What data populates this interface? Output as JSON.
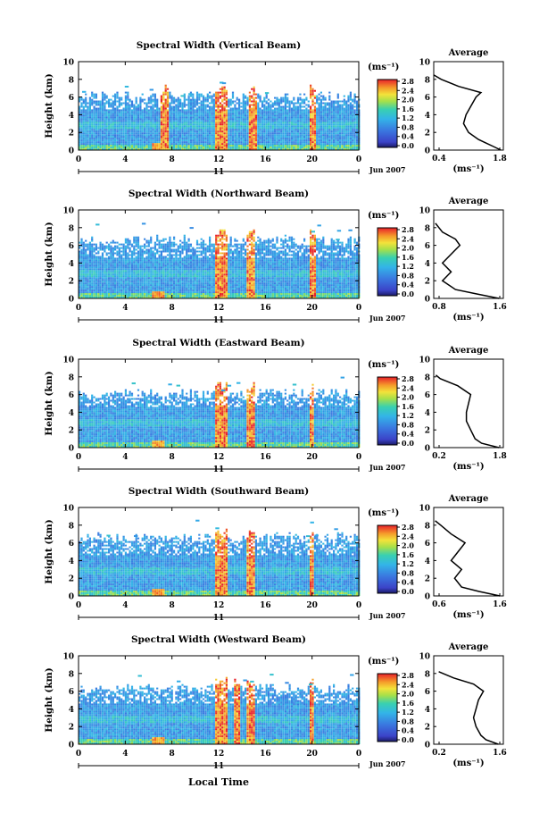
{
  "figure": {
    "xlabel": "Local Time",
    "colorbar_unit": "(ms⁻¹)",
    "colorbar_ticks": [
      "2.8",
      "2.4",
      "2.0",
      "1.6",
      "1.2",
      "0.8",
      "0.4",
      "0.0"
    ],
    "colorbar_range": [
      0.0,
      2.8
    ],
    "date_label": "Jun 2007",
    "day_label": "11",
    "average_title": "Average",
    "average_xlabel": "(ms⁻¹)",
    "ylabel": "Height (km)",
    "colors": {
      "background": "#ffffff",
      "low": "#2233aa",
      "mid": "#33bbcc",
      "high": "#ee3322"
    }
  },
  "chart_data": [
    {
      "type": "heatmap",
      "title": "Spectral Width (Vertical Beam)",
      "ylabel": "Height (km)",
      "x_ticks": [
        "0",
        "4",
        "8",
        "12",
        "16",
        "20",
        "0"
      ],
      "y_ticks": [
        "0",
        "2",
        "4",
        "6",
        "8",
        "10"
      ],
      "xlim": [
        0,
        24
      ],
      "ylim": [
        0,
        10
      ],
      "top_height_km": 6.0,
      "high_bands": [
        [
          7,
          7.6
        ],
        [
          11.6,
          12.6
        ],
        [
          14.4,
          15.2
        ],
        [
          19.7,
          20.2
        ]
      ],
      "average": {
        "title": "Average",
        "x_ticks": [
          "0.4",
          "1.8"
        ],
        "xlim": [
          0.4,
          1.8
        ],
        "points": [
          [
            1.75,
            0
          ],
          [
            1.6,
            0.4
          ],
          [
            1.45,
            0.8
          ],
          [
            1.3,
            1.2
          ],
          [
            1.1,
            2
          ],
          [
            1.0,
            3
          ],
          [
            1.05,
            4
          ],
          [
            1.15,
            5
          ],
          [
            1.25,
            6
          ],
          [
            1.35,
            6.5
          ],
          [
            0.9,
            7.2
          ],
          [
            0.55,
            8
          ],
          [
            0.4,
            8.5
          ]
        ]
      }
    },
    {
      "type": "heatmap",
      "title": "Spectral Width (Northward Beam)",
      "ylabel": "Height (km)",
      "x_ticks": [
        "0",
        "4",
        "8",
        "12",
        "16",
        "20",
        "0"
      ],
      "y_ticks": [
        "0",
        "2",
        "4",
        "6",
        "8",
        "10"
      ],
      "xlim": [
        0,
        24
      ],
      "ylim": [
        0,
        10
      ],
      "top_height_km": 6.5,
      "high_bands": [
        [
          11.6,
          12.7
        ],
        [
          14.3,
          15.0
        ],
        [
          19.7,
          20.2
        ]
      ],
      "average": {
        "title": "Average",
        "x_ticks": [
          "0.8",
          "1.6"
        ],
        "xlim": [
          0.8,
          1.6
        ],
        "points": [
          [
            1.55,
            0
          ],
          [
            1.3,
            0.5
          ],
          [
            1.05,
            1
          ],
          [
            0.9,
            2
          ],
          [
            1.0,
            3
          ],
          [
            0.9,
            4
          ],
          [
            1.0,
            5
          ],
          [
            1.1,
            6
          ],
          [
            1.05,
            6.7
          ],
          [
            0.9,
            7.5
          ],
          [
            0.82,
            8.5
          ]
        ]
      }
    },
    {
      "type": "heatmap",
      "title": "Spectral Width (Eastward Beam)",
      "ylabel": "Height (km)",
      "x_ticks": [
        "0",
        "4",
        "8",
        "12",
        "16",
        "20",
        "0"
      ],
      "y_ticks": [
        "0",
        "2",
        "4",
        "6",
        "8",
        "10"
      ],
      "xlim": [
        0,
        24
      ],
      "ylim": [
        0,
        10
      ],
      "top_height_km": 6.0,
      "high_bands": [
        [
          11.6,
          12.7
        ],
        [
          14.3,
          15.0
        ],
        [
          19.7,
          20.1
        ]
      ],
      "average": {
        "title": "Average",
        "x_ticks": [
          "0.2",
          "1.8"
        ],
        "xlim": [
          0.2,
          1.8
        ],
        "points": [
          [
            1.7,
            0
          ],
          [
            1.3,
            0.5
          ],
          [
            1.15,
            1
          ],
          [
            1.05,
            2
          ],
          [
            0.95,
            3
          ],
          [
            0.95,
            4
          ],
          [
            1.0,
            5
          ],
          [
            1.05,
            6
          ],
          [
            0.75,
            7
          ],
          [
            0.35,
            7.8
          ],
          [
            0.25,
            8.2
          ]
        ]
      }
    },
    {
      "type": "heatmap",
      "title": "Spectral Width (Southward Beam)",
      "ylabel": "Height (km)",
      "x_ticks": [
        "0",
        "4",
        "8",
        "12",
        "16",
        "20",
        "0"
      ],
      "y_ticks": [
        "0",
        "2",
        "4",
        "6",
        "8",
        "10"
      ],
      "xlim": [
        0,
        24
      ],
      "ylim": [
        0,
        10
      ],
      "top_height_km": 6.5,
      "high_bands": [
        [
          11.6,
          12.7
        ],
        [
          14.3,
          15.0
        ],
        [
          19.7,
          20.1
        ]
      ],
      "average": {
        "title": "Average",
        "x_ticks": [
          "0.6",
          "1.6"
        ],
        "xlim": [
          0.6,
          1.6
        ],
        "points": [
          [
            1.55,
            0
          ],
          [
            1.25,
            0.5
          ],
          [
            1.0,
            1
          ],
          [
            0.9,
            2
          ],
          [
            1.0,
            3
          ],
          [
            0.85,
            4
          ],
          [
            0.95,
            5
          ],
          [
            1.05,
            6
          ],
          [
            0.85,
            7
          ],
          [
            0.7,
            8
          ],
          [
            0.62,
            8.5
          ]
        ]
      }
    },
    {
      "type": "heatmap",
      "title": "Spectral Width (Westward Beam)",
      "ylabel": "Height (km)",
      "x_ticks": [
        "0",
        "4",
        "8",
        "12",
        "16",
        "20",
        "0"
      ],
      "y_ticks": [
        "0",
        "2",
        "4",
        "6",
        "8",
        "10"
      ],
      "xlim": [
        0,
        24
      ],
      "ylim": [
        0,
        10
      ],
      "top_height_km": 6.2,
      "high_bands": [
        [
          11.6,
          12.7
        ],
        [
          13.2,
          13.8
        ],
        [
          14.3,
          15.0
        ],
        [
          19.7,
          20.1
        ]
      ],
      "average": {
        "title": "Average",
        "x_ticks": [
          "0.2",
          "1.6"
        ],
        "xlim": [
          0.2,
          1.6
        ],
        "points": [
          [
            1.5,
            0
          ],
          [
            1.25,
            0.5
          ],
          [
            1.15,
            1
          ],
          [
            1.05,
            2
          ],
          [
            1.0,
            3
          ],
          [
            1.05,
            4
          ],
          [
            1.1,
            5
          ],
          [
            1.2,
            6
          ],
          [
            1.0,
            6.8
          ],
          [
            0.6,
            7.5
          ],
          [
            0.3,
            8.2
          ]
        ]
      }
    }
  ]
}
